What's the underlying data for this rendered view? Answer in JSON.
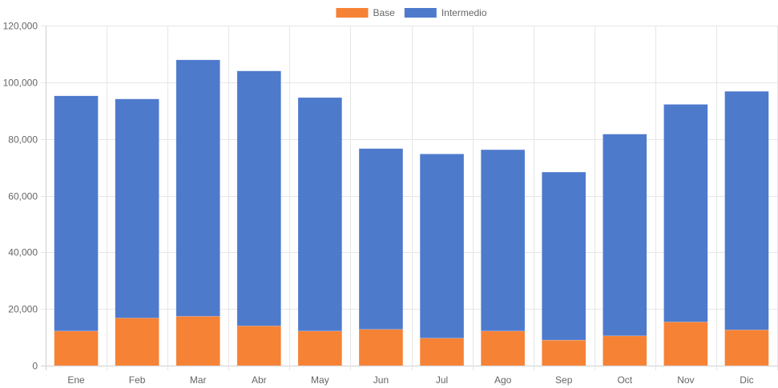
{
  "chart_data": {
    "type": "bar",
    "stacked": true,
    "categories": [
      "Ene",
      "Feb",
      "Mar",
      "Abr",
      "May",
      "Jun",
      "Jul",
      "Ago",
      "Sep",
      "Oct",
      "Nov",
      "Dic"
    ],
    "series": [
      {
        "name": "Base",
        "color": "#f58235",
        "values": [
          12200,
          16800,
          17400,
          14000,
          12200,
          12800,
          9700,
          12200,
          9000,
          10500,
          15400,
          12600
        ]
      },
      {
        "name": "Intermedio",
        "color": "#4e7acc",
        "values": [
          83000,
          77300,
          90500,
          90000,
          82400,
          63800,
          65000,
          64000,
          59300,
          71200,
          76800,
          84200
        ]
      }
    ],
    "ylim": [
      0,
      120000
    ],
    "y_ticks": [
      "0",
      "20,000",
      "40,000",
      "60,000",
      "80,000",
      "100,000",
      "120,000"
    ],
    "grid": true,
    "legend_position": "top-center"
  }
}
